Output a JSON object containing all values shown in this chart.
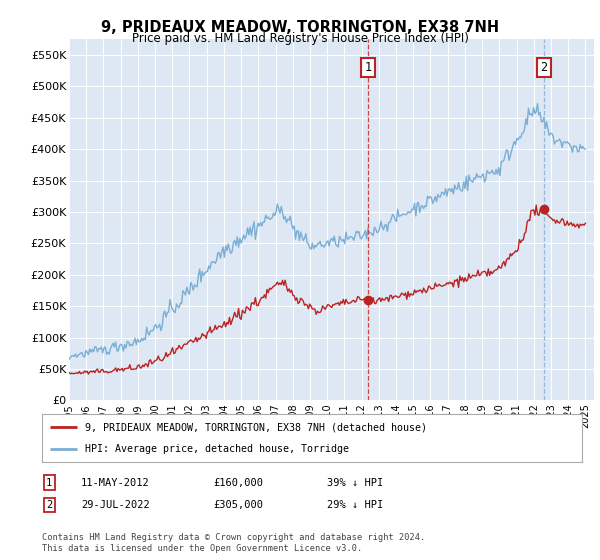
{
  "title": "9, PRIDEAUX MEADOW, TORRINGTON, EX38 7NH",
  "subtitle": "Price paid vs. HM Land Registry's House Price Index (HPI)",
  "ylim": [
    0,
    575000
  ],
  "yticks": [
    0,
    50000,
    100000,
    150000,
    200000,
    250000,
    300000,
    350000,
    400000,
    450000,
    500000,
    550000
  ],
  "ytick_labels": [
    "£0",
    "£50K",
    "£100K",
    "£150K",
    "£200K",
    "£250K",
    "£300K",
    "£350K",
    "£400K",
    "£450K",
    "£500K",
    "£550K"
  ],
  "xlim_start": 1995.0,
  "xlim_end": 2025.5,
  "hpi_color": "#7aaed4",
  "price_color": "#bb2222",
  "bg_color": "#dde8f4",
  "vline1_color": "#cc3333",
  "vline2_color": "#8ab4d4",
  "transaction1_x": 2012.36,
  "transaction1_y": 160000,
  "transaction1_label": "1",
  "transaction1_date": "11-MAY-2012",
  "transaction1_price": "£160,000",
  "transaction1_hpi": "39% ↓ HPI",
  "transaction2_x": 2022.58,
  "transaction2_y": 305000,
  "transaction2_label": "2",
  "transaction2_date": "29-JUL-2022",
  "transaction2_price": "£305,000",
  "transaction2_hpi": "29% ↓ HPI",
  "legend_prop_label": "9, PRIDEAUX MEADOW, TORRINGTON, EX38 7NH (detached house)",
  "legend_hpi_label": "HPI: Average price, detached house, Torridge",
  "copyright_text": "Contains HM Land Registry data © Crown copyright and database right 2024.\nThis data is licensed under the Open Government Licence v3.0.",
  "hpi_base_x": [
    1995,
    1997,
    1999,
    2000,
    2001,
    2002,
    2003,
    2004,
    2005,
    2006,
    2007,
    2007.5,
    2008,
    2009,
    2010,
    2011,
    2012,
    2013,
    2014,
    2015,
    2016,
    2017,
    2018,
    2019,
    2020,
    2021,
    2021.5,
    2022,
    2022.3,
    2023,
    2024,
    2025
  ],
  "hpi_base_y": [
    70000,
    80000,
    95000,
    115000,
    145000,
    175000,
    210000,
    240000,
    260000,
    278000,
    298000,
    302000,
    275000,
    245000,
    250000,
    255000,
    262000,
    275000,
    290000,
    305000,
    318000,
    332000,
    345000,
    358000,
    368000,
    415000,
    440000,
    462000,
    455000,
    420000,
    405000,
    400000
  ],
  "prop_base_x": [
    1995,
    1997,
    1999,
    2000,
    2001,
    2002,
    2003,
    2004,
    2005,
    2006,
    2007,
    2007.5,
    2008,
    2009,
    2009.5,
    2010,
    2011,
    2012,
    2013,
    2014,
    2015,
    2016,
    2017,
    2018,
    2019,
    2020,
    2021,
    2021.5,
    2022,
    2022.3,
    2023,
    2024,
    2025
  ],
  "prop_base_y": [
    43000,
    46000,
    52000,
    62000,
    75000,
    90000,
    105000,
    120000,
    140000,
    158000,
    182000,
    186000,
    170000,
    148000,
    142000,
    148000,
    155000,
    160000,
    158000,
    165000,
    172000,
    178000,
    185000,
    193000,
    200000,
    208000,
    240000,
    270000,
    305000,
    300000,
    290000,
    282000,
    278000
  ]
}
